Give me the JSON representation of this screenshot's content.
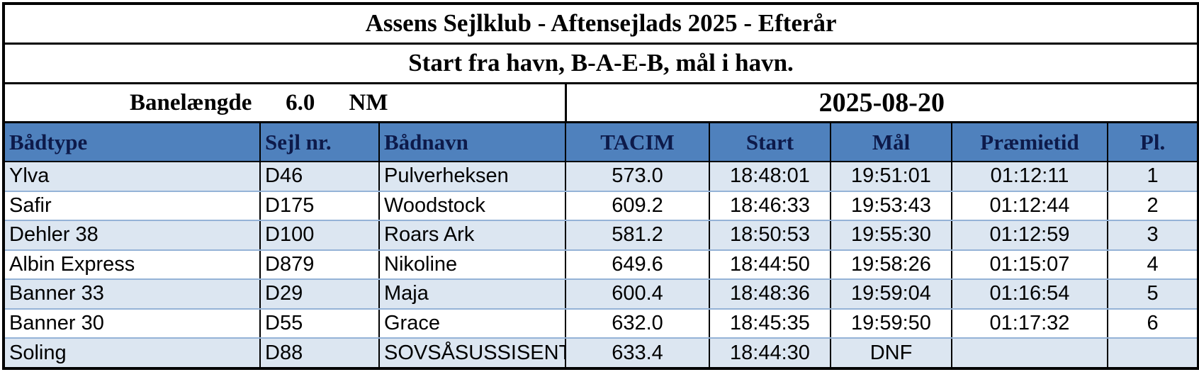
{
  "title": "Assens Sejlklub - Aftensejlads 2025 - Efterår",
  "subtitle": "Start fra havn, B-A-E-B, mål i havn.",
  "info": {
    "label": "Banelængde",
    "length": "6.0",
    "unit": "NM",
    "date": "2025-08-20"
  },
  "table": {
    "headers": [
      "Bådtype",
      "Sejl nr.",
      "Bådnavn",
      "TACIM",
      "Start",
      "Mål",
      "Præmietid",
      "Pl."
    ],
    "rows": [
      [
        "Ylva",
        "D46",
        "Pulverheksen",
        "573.0",
        "18:48:01",
        "19:51:01",
        "01:12:11",
        "1"
      ],
      [
        "Safir",
        "D175",
        "Woodstock",
        "609.2",
        "18:46:33",
        "19:53:43",
        "01:12:44",
        "2"
      ],
      [
        "Dehler 38",
        "D100",
        "Roars Ark",
        "581.2",
        "18:50:53",
        "19:55:30",
        "01:12:59",
        "3"
      ],
      [
        "Albin Express",
        "D879",
        "Nikoline",
        "649.6",
        "18:44:50",
        "19:58:26",
        "01:15:07",
        "4"
      ],
      [
        "Banner 33",
        "D29",
        "Maja",
        "600.4",
        "18:48:36",
        "19:59:04",
        "01:16:54",
        "5"
      ],
      [
        "Banner 30",
        "D55",
        "Grace",
        "632.0",
        "18:45:35",
        "19:59:50",
        "01:17:32",
        "6"
      ],
      [
        "Soling",
        "D88",
        "SOVSÅSUSSISENT",
        "633.4",
        "18:44:30",
        "DNF",
        null,
        null
      ]
    ]
  }
}
